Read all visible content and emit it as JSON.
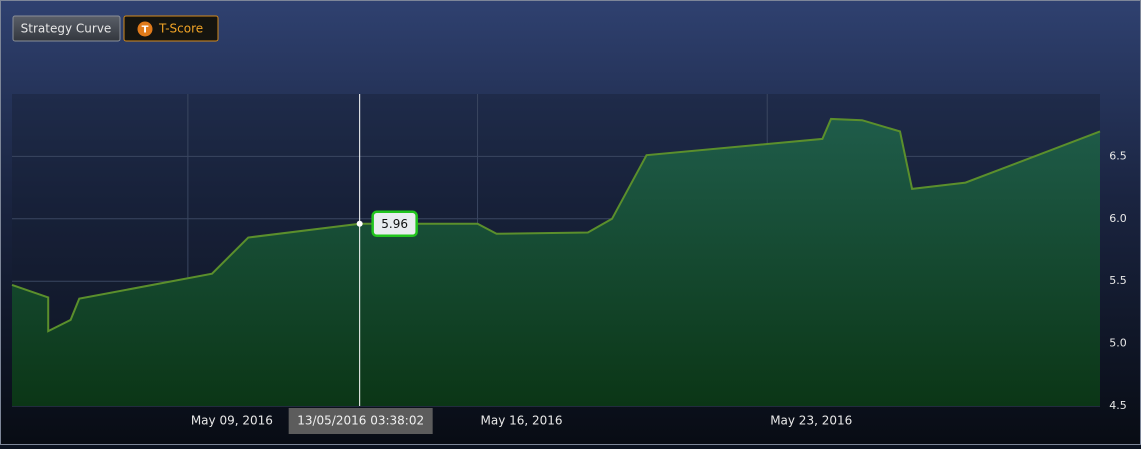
{
  "toolbar": {
    "buttons": [
      {
        "label": "Strategy Curve"
      },
      {
        "label": "T-Score",
        "icon": "T"
      }
    ]
  },
  "chart_data": {
    "type": "area",
    "x": [
      "2016-05-04T18:00",
      "2016-05-05T15:00",
      "2016-05-05T15:00",
      "2016-05-06T04:00",
      "2016-05-06T09:00",
      "2016-05-09T14:00",
      "2016-05-10T11:00",
      "2016-05-13T03:38",
      "2016-05-16T00:00",
      "2016-05-16T11:00",
      "2016-05-18T16:00",
      "2016-05-19T06:00",
      "2016-05-20T02:00",
      "2016-05-24T08:00",
      "2016-05-24T13:00",
      "2016-05-25T07:00",
      "2016-05-26T05:00",
      "2016-05-26T12:00",
      "2016-05-27T19:00",
      "2016-05-31T01:00"
    ],
    "series": [
      {
        "name": "T-Score",
        "color": "#5b8f2c",
        "values": [
          5.47,
          5.37,
          5.1,
          5.19,
          5.36,
          5.56,
          5.85,
          5.96,
          5.96,
          5.88,
          5.89,
          6.0,
          6.51,
          6.64,
          6.8,
          6.79,
          6.7,
          6.24,
          6.29,
          6.7
        ]
      }
    ],
    "xlim": [
      "2016-05-04T18:00",
      "2016-05-31T01:00"
    ],
    "xticks": [
      {
        "value": "2016-05-09T00:00",
        "label": "May 09, 2016"
      },
      {
        "value": "2016-05-16T00:00",
        "label": "May 16, 2016"
      },
      {
        "value": "2016-05-23T00:00",
        "label": "May 23, 2016"
      }
    ],
    "ylim": [
      4.5,
      7.0
    ],
    "yticks": [
      4.5,
      {
        "value": 5,
        "label": "5.0"
      },
      5.5,
      {
        "value": 6,
        "label": "6.0"
      },
      6.5
    ],
    "grid": true,
    "crosshair": {
      "x": "2016-05-13T03:38",
      "x_label": "13/05/2016 03:38:02",
      "value": 5.96
    }
  }
}
